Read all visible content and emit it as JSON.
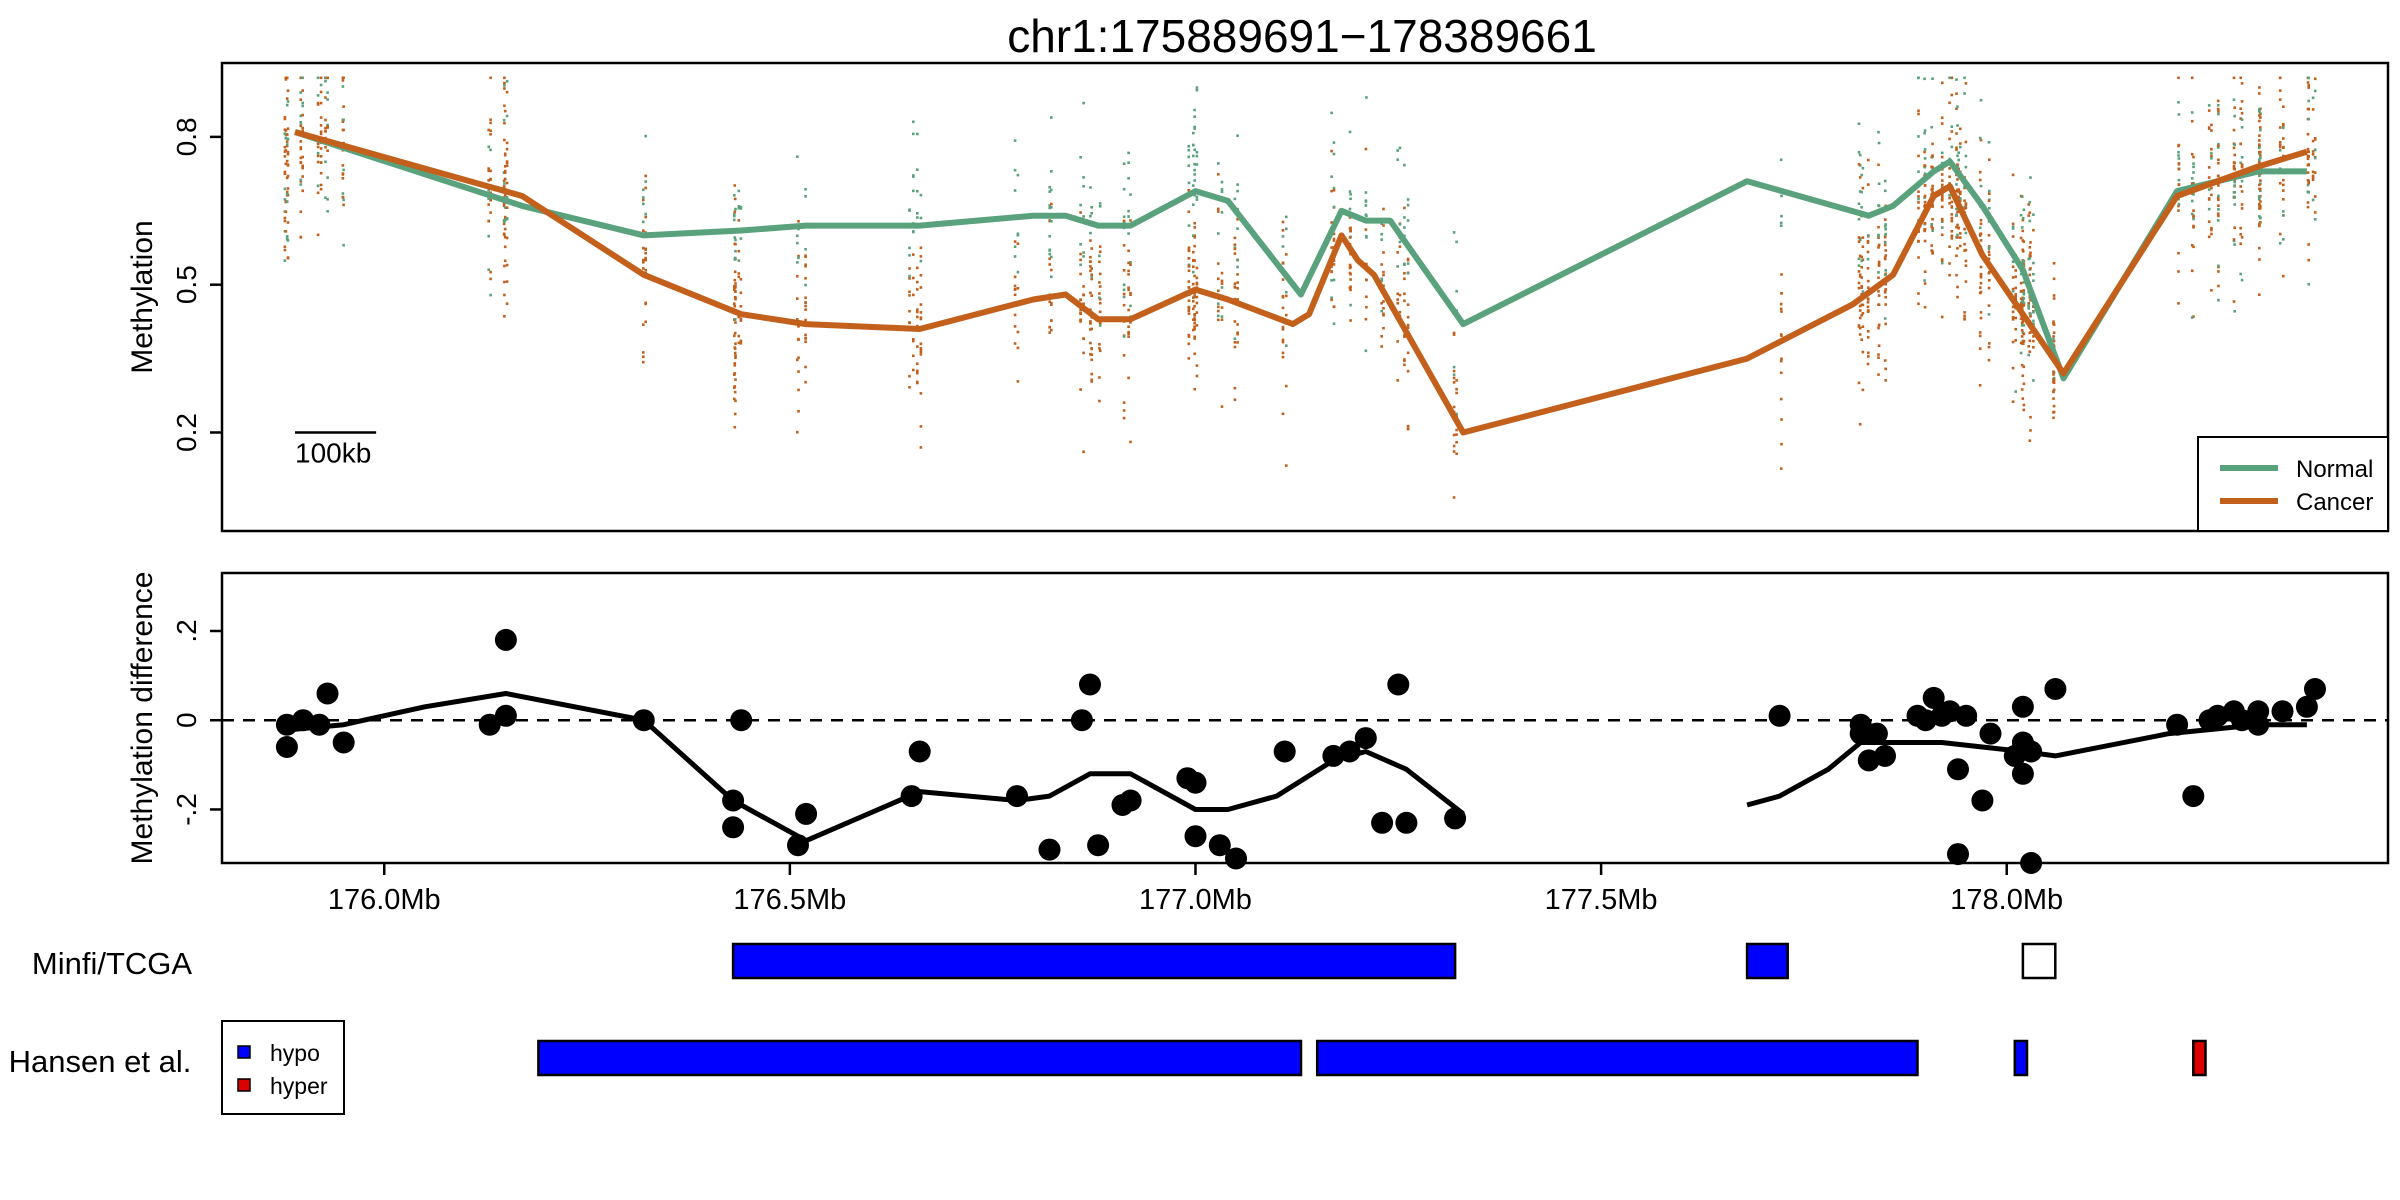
{
  "figure": {
    "title": "chr1:175889691−178389661"
  },
  "colors": {
    "normal": "#5aa27d",
    "cancer": "#c2601c",
    "hypo": "#0000ff",
    "hyper": "#dd0000",
    "black": "#000000"
  },
  "chart_data": [
    {
      "type": "line",
      "panel": "methylation",
      "ylabel": "Methylation",
      "ylim": [
        0.0,
        0.95
      ],
      "xlim": [
        175.8,
        178.47
      ],
      "yticks": [
        0.2,
        0.5,
        0.8
      ],
      "ytick_labels": [
        "0.2",
        "0.5",
        "0.8"
      ],
      "scale_bar": {
        "label": "100kb",
        "length_mb": 0.1,
        "x_start": 175.89,
        "y": 0.2
      },
      "legend": {
        "position": "bottom-right",
        "entries": [
          "Normal",
          "Cancer"
        ]
      },
      "series": [
        {
          "name": "Normal",
          "x": [
            175.89,
            176.17,
            176.32,
            176.44,
            176.52,
            176.66,
            176.8,
            176.84,
            176.88,
            176.92,
            177.0,
            177.04,
            177.13,
            177.18,
            177.21,
            177.24,
            177.33,
            177.68,
            177.83,
            177.86,
            177.91,
            177.93,
            177.97,
            178.02,
            178.07,
            178.21,
            178.31,
            178.37
          ],
          "y": [
            0.81,
            0.66,
            0.6,
            0.61,
            0.62,
            0.62,
            0.64,
            0.64,
            0.62,
            0.62,
            0.69,
            0.67,
            0.48,
            0.65,
            0.63,
            0.63,
            0.42,
            0.71,
            0.64,
            0.66,
            0.73,
            0.75,
            0.66,
            0.53,
            0.31,
            0.69,
            0.73,
            0.73
          ]
        },
        {
          "name": "Cancer",
          "x": [
            175.89,
            176.17,
            176.32,
            176.44,
            176.52,
            176.66,
            176.8,
            176.84,
            176.88,
            176.92,
            177.0,
            177.04,
            177.12,
            177.14,
            177.18,
            177.2,
            177.22,
            177.33,
            177.68,
            177.81,
            177.86,
            177.91,
            177.93,
            177.97,
            178.02,
            178.07,
            178.21,
            178.31,
            178.37
          ],
          "y": [
            0.81,
            0.68,
            0.52,
            0.44,
            0.42,
            0.41,
            0.47,
            0.48,
            0.43,
            0.43,
            0.49,
            0.47,
            0.42,
            0.44,
            0.6,
            0.55,
            0.52,
            0.2,
            0.35,
            0.46,
            0.52,
            0.68,
            0.7,
            0.56,
            0.44,
            0.32,
            0.68,
            0.74,
            0.77
          ]
        }
      ]
    },
    {
      "type": "scatter",
      "panel": "difference",
      "ylabel": "Methylation difference",
      "ylim": [
        -0.32,
        0.33
      ],
      "xlim": [
        175.8,
        178.47
      ],
      "yticks": [
        -0.2,
        0.0,
        0.2
      ],
      "ytick_labels": [
        "-.2",
        "0",
        ".2"
      ],
      "xticks": [
        176.0,
        176.5,
        177.0,
        177.5,
        178.0
      ],
      "xtick_labels": [
        "176.0Mb",
        "176.5Mb",
        "177.0Mb",
        "177.5Mb",
        "178.0Mb"
      ],
      "reference_line": 0.0,
      "points": {
        "x": [
          175.88,
          175.88,
          175.9,
          175.92,
          175.93,
          175.95,
          176.13,
          176.15,
          176.15,
          176.32,
          176.43,
          176.43,
          176.44,
          176.51,
          176.52,
          176.65,
          176.66,
          176.78,
          176.82,
          176.86,
          176.87,
          176.88,
          176.91,
          176.92,
          176.99,
          177.0,
          177.0,
          177.03,
          177.05,
          177.11,
          177.17,
          177.19,
          177.21,
          177.23,
          177.25,
          177.26,
          177.32,
          177.72,
          177.82,
          177.83,
          177.84,
          177.85,
          177.82,
          177.89,
          177.91,
          177.9,
          177.93,
          177.92,
          177.94,
          177.95,
          177.97,
          177.98,
          178.01,
          178.02,
          178.02,
          178.02,
          178.03,
          178.06,
          178.21,
          178.23,
          178.25,
          178.26,
          178.28,
          178.29,
          178.31,
          178.31,
          178.34,
          178.37,
          178.38,
          177.94,
          178.03
        ],
        "y": [
          -0.01,
          -0.06,
          0.0,
          -0.01,
          0.06,
          -0.05,
          -0.01,
          0.18,
          0.01,
          0.0,
          -0.18,
          -0.24,
          0.0,
          -0.28,
          -0.21,
          -0.17,
          -0.07,
          -0.17,
          -0.29,
          0.0,
          0.08,
          -0.28,
          -0.19,
          -0.18,
          -0.13,
          -0.14,
          -0.26,
          -0.28,
          -0.31,
          -0.07,
          -0.08,
          -0.07,
          -0.04,
          -0.23,
          0.08,
          -0.23,
          -0.22,
          0.01,
          -0.01,
          -0.09,
          -0.03,
          -0.08,
          -0.03,
          0.01,
          0.05,
          0.0,
          0.02,
          0.01,
          -0.11,
          0.01,
          -0.18,
          -0.03,
          -0.08,
          -0.12,
          -0.05,
          0.03,
          -0.07,
          0.07,
          -0.01,
          -0.17,
          0.0,
          0.01,
          0.02,
          0.0,
          0.02,
          -0.01,
          0.02,
          0.03,
          0.07,
          -0.3,
          -0.32
        ]
      },
      "trend_segments": [
        {
          "x": [
            175.89,
            175.95,
            176.05,
            176.15,
            176.32,
            176.43,
            176.52,
            176.66,
            176.78,
            176.82,
            176.87,
            176.92,
            177.0,
            177.04,
            177.1,
            177.17,
            177.21,
            177.26,
            177.33
          ],
          "y": [
            -0.02,
            -0.01,
            0.03,
            0.06,
            0.0,
            -0.18,
            -0.27,
            -0.16,
            -0.18,
            -0.17,
            -0.12,
            -0.12,
            -0.2,
            -0.2,
            -0.17,
            -0.09,
            -0.07,
            -0.11,
            -0.21
          ]
        },
        {
          "x": [
            177.68,
            177.72,
            177.78,
            177.82,
            177.86,
            177.92,
            178.02,
            178.06,
            178.2,
            178.31,
            178.37
          ],
          "y": [
            -0.19,
            -0.17,
            -0.11,
            -0.05,
            -0.05,
            -0.05,
            -0.07,
            -0.08,
            -0.03,
            -0.01,
            -0.01
          ]
        }
      ]
    },
    {
      "type": "table",
      "panel": "tracks",
      "tracks": [
        {
          "label": "Minfi/TCGA",
          "regions": [
            {
              "start": 176.43,
              "end": 177.32,
              "fill": "hypo"
            },
            {
              "start": 177.68,
              "end": 177.73,
              "fill": "hypo"
            },
            {
              "start": 178.02,
              "end": 178.06,
              "fill": "none"
            }
          ]
        },
        {
          "label": "Hansen et al.",
          "regions": [
            {
              "start": 176.19,
              "end": 177.13,
              "fill": "hypo"
            },
            {
              "start": 177.15,
              "end": 177.89,
              "fill": "hypo"
            },
            {
              "start": 178.01,
              "end": 178.025,
              "fill": "hypo"
            },
            {
              "start": 178.23,
              "end": 178.245,
              "fill": "hyper"
            }
          ]
        }
      ],
      "legend": {
        "entries": [
          "hypo",
          "hyper"
        ]
      }
    }
  ]
}
